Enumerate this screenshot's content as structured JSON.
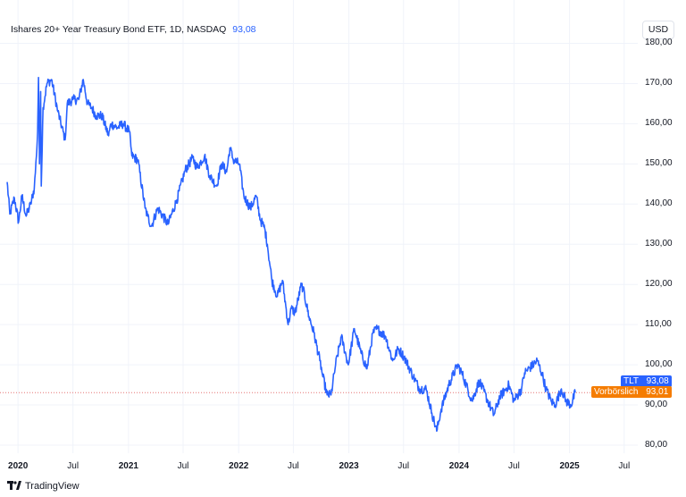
{
  "header": {
    "title": "Ishares 20+ Year Treasury Bond ETF, 1D, NASDAQ",
    "last_price": "93,08"
  },
  "currency": "USD",
  "branding": {
    "logo_icon": "tradingview-logo-icon",
    "name": "TradingView"
  },
  "price_tags": {
    "ticker": {
      "label": "TLT",
      "value": "93,08",
      "color": "#2962ff"
    },
    "premarket": {
      "label": "Vorbörslich",
      "value": "93,01",
      "color": "#f57c00"
    }
  },
  "chart_data": {
    "type": "line",
    "title": "Ishares 20+ Year Treasury Bond ETF, 1D, NASDAQ",
    "xlabel": "",
    "ylabel": "",
    "x_tick_labels": [
      "2020",
      "Jul",
      "2021",
      "Jul",
      "2022",
      "Jul",
      "2023",
      "Jul",
      "2024",
      "Jul",
      "2025",
      "Jul"
    ],
    "year_ticks": [
      "2020",
      "2021",
      "2022",
      "2023",
      "2024",
      "2025"
    ],
    "y_tick_labels": [
      "180,00",
      "170,00",
      "160,00",
      "150,00",
      "140,00",
      "130,00",
      "120,00",
      "110,00",
      "100,00",
      "90,00",
      "80,00"
    ],
    "ylim": [
      78,
      181
    ],
    "xlim": [
      "2019-11-26",
      "2025-08-15"
    ],
    "grid": true,
    "line_color": "#2962ff",
    "last_value_line": 93.08,
    "series": [
      {
        "name": "TLT",
        "points": [
          [
            "2019-11-26",
            145.5
          ],
          [
            "2019-12-05",
            137.5
          ],
          [
            "2019-12-20",
            141.5
          ],
          [
            "2020-01-03",
            135.5
          ],
          [
            "2020-01-14",
            142
          ],
          [
            "2020-01-28",
            137
          ],
          [
            "2020-02-12",
            140
          ],
          [
            "2020-02-24",
            144
          ],
          [
            "2020-03-02",
            152
          ],
          [
            "2020-03-06",
            158
          ],
          [
            "2020-03-09",
            171.5
          ],
          [
            "2020-03-12",
            150
          ],
          [
            "2020-03-16",
            168
          ],
          [
            "2020-03-18",
            144.5
          ],
          [
            "2020-03-24",
            164
          ],
          [
            "2020-04-06",
            170
          ],
          [
            "2020-04-21",
            171
          ],
          [
            "2020-05-12",
            163
          ],
          [
            "2020-06-05",
            156
          ],
          [
            "2020-06-12",
            165
          ],
          [
            "2020-07-01",
            166
          ],
          [
            "2020-07-20",
            166
          ],
          [
            "2020-08-04",
            171
          ],
          [
            "2020-08-18",
            165
          ],
          [
            "2020-09-01",
            164
          ],
          [
            "2020-09-15",
            162
          ],
          [
            "2020-10-05",
            162
          ],
          [
            "2020-10-27",
            157
          ],
          [
            "2020-11-04",
            160
          ],
          [
            "2020-11-25",
            159
          ],
          [
            "2020-12-14",
            160
          ],
          [
            "2021-01-04",
            158
          ],
          [
            "2021-01-12",
            152
          ],
          [
            "2021-02-01",
            151
          ],
          [
            "2021-02-25",
            139
          ],
          [
            "2021-03-05",
            137
          ],
          [
            "2021-03-18",
            134.5
          ],
          [
            "2021-04-08",
            139
          ],
          [
            "2021-05-12",
            135
          ],
          [
            "2021-06-10",
            141
          ],
          [
            "2021-07-08",
            148.5
          ],
          [
            "2021-08-02",
            151.5
          ],
          [
            "2021-08-16",
            149
          ],
          [
            "2021-09-10",
            152
          ],
          [
            "2021-09-27",
            147
          ],
          [
            "2021-10-20",
            144.5
          ],
          [
            "2021-11-05",
            150
          ],
          [
            "2021-11-22",
            148
          ],
          [
            "2021-12-03",
            154
          ],
          [
            "2021-12-14",
            151
          ],
          [
            "2022-01-03",
            150
          ],
          [
            "2022-01-18",
            142
          ],
          [
            "2022-02-09",
            139
          ],
          [
            "2022-02-28",
            142
          ],
          [
            "2022-03-14",
            136
          ],
          [
            "2022-03-28",
            134
          ],
          [
            "2022-04-06",
            130
          ],
          [
            "2022-04-21",
            121
          ],
          [
            "2022-05-09",
            117
          ],
          [
            "2022-05-26",
            121
          ],
          [
            "2022-06-14",
            110
          ],
          [
            "2022-06-24",
            114
          ],
          [
            "2022-07-07",
            113
          ],
          [
            "2022-07-28",
            120
          ],
          [
            "2022-08-02",
            119
          ],
          [
            "2022-08-22",
            112
          ],
          [
            "2022-09-07",
            108
          ],
          [
            "2022-09-27",
            101
          ],
          [
            "2022-10-07",
            97
          ],
          [
            "2022-10-21",
            92.5
          ],
          [
            "2022-11-03",
            92.5
          ],
          [
            "2022-11-18",
            100
          ],
          [
            "2022-12-07",
            107
          ],
          [
            "2022-12-30",
            100
          ],
          [
            "2023-01-19",
            109
          ],
          [
            "2023-02-10",
            103
          ],
          [
            "2023-03-02",
            99
          ],
          [
            "2023-03-22",
            108
          ],
          [
            "2023-04-05",
            109
          ],
          [
            "2023-05-03",
            107
          ],
          [
            "2023-05-26",
            101
          ],
          [
            "2023-06-14",
            104
          ],
          [
            "2023-07-03",
            102
          ],
          [
            "2023-08-03",
            97
          ],
          [
            "2023-08-23",
            94
          ],
          [
            "2023-09-14",
            94
          ],
          [
            "2023-10-03",
            88
          ],
          [
            "2023-10-19",
            83.5
          ],
          [
            "2023-11-03",
            89
          ],
          [
            "2023-11-28",
            95
          ],
          [
            "2023-12-27",
            100
          ],
          [
            "2024-01-10",
            98
          ],
          [
            "2024-02-13",
            91
          ],
          [
            "2024-03-08",
            96
          ],
          [
            "2024-04-25",
            87.5
          ],
          [
            "2024-05-15",
            92
          ],
          [
            "2024-06-14",
            95
          ],
          [
            "2024-07-01",
            91
          ],
          [
            "2024-07-26",
            94
          ],
          [
            "2024-08-05",
            98
          ],
          [
            "2024-09-16",
            101
          ],
          [
            "2024-10-01",
            98
          ],
          [
            "2024-10-15",
            94
          ],
          [
            "2024-11-01",
            91
          ],
          [
            "2024-11-14",
            90
          ],
          [
            "2024-12-05",
            94
          ],
          [
            "2024-12-20",
            91
          ],
          [
            "2025-01-06",
            90
          ],
          [
            "2025-01-20",
            93.08
          ]
        ]
      }
    ]
  }
}
